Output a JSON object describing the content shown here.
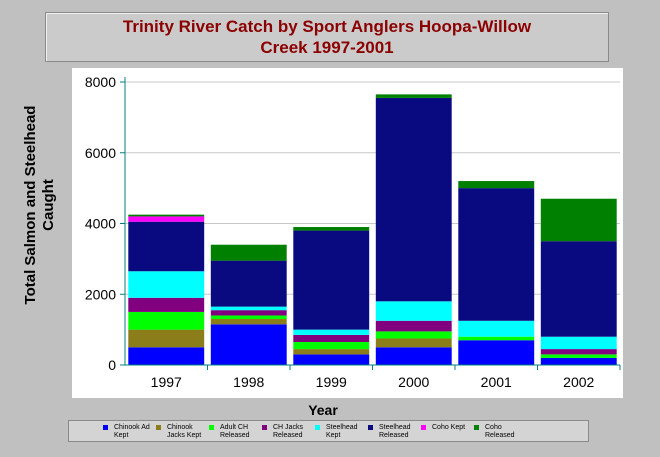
{
  "chart_data": {
    "type": "bar",
    "stacked": true,
    "title": "Trinity River Catch by Sport Anglers Hoopa-Willow Creek 1997-2001",
    "title_lines": [
      "Trinity River Catch by Sport Anglers Hoopa-Willow",
      "Creek 1997-2001"
    ],
    "xlabel": "Year",
    "ylabel": "Total Salmon and Steelhead Caught",
    "ylabel_lines": [
      "Total Salmon and Steelhead",
      "Caught"
    ],
    "ylim": [
      0,
      8000
    ],
    "yticks": [
      "0",
      "2000",
      "4000",
      "6000",
      "8000"
    ],
    "legend_placement": "bottom",
    "categories": [
      "1997",
      "1998",
      "1999",
      "2000",
      "2001",
      "2002"
    ],
    "series": [
      {
        "name": "Chinook Ad Kept",
        "color": "#0000ff",
        "values": [
          500,
          1150,
          300,
          500,
          700,
          200
        ]
      },
      {
        "name": "Chinook Jacks Kept",
        "color": "#8b7d1a",
        "values": [
          500,
          150,
          150,
          250,
          0,
          0
        ]
      },
      {
        "name": "Adult CH Released",
        "color": "#00ff00",
        "values": [
          500,
          100,
          200,
          200,
          100,
          100
        ]
      },
      {
        "name": "CH Jacks Released",
        "color": "#800080",
        "values": [
          400,
          150,
          200,
          300,
          0,
          150
        ]
      },
      {
        "name": "Steelhead Kept",
        "color": "#00ffff",
        "values": [
          750,
          100,
          150,
          550,
          450,
          350
        ]
      },
      {
        "name": "Steelhead Released",
        "color": "#0a0a80",
        "values": [
          1400,
          1300,
          2800,
          5750,
          3750,
          2700
        ]
      },
      {
        "name": "Coho Kept",
        "color": "#ff00ff",
        "values": [
          150,
          0,
          0,
          0,
          0,
          0
        ]
      },
      {
        "name": "Coho Released",
        "color": "#008000",
        "values": [
          50,
          450,
          100,
          100,
          200,
          1200
        ]
      }
    ]
  }
}
